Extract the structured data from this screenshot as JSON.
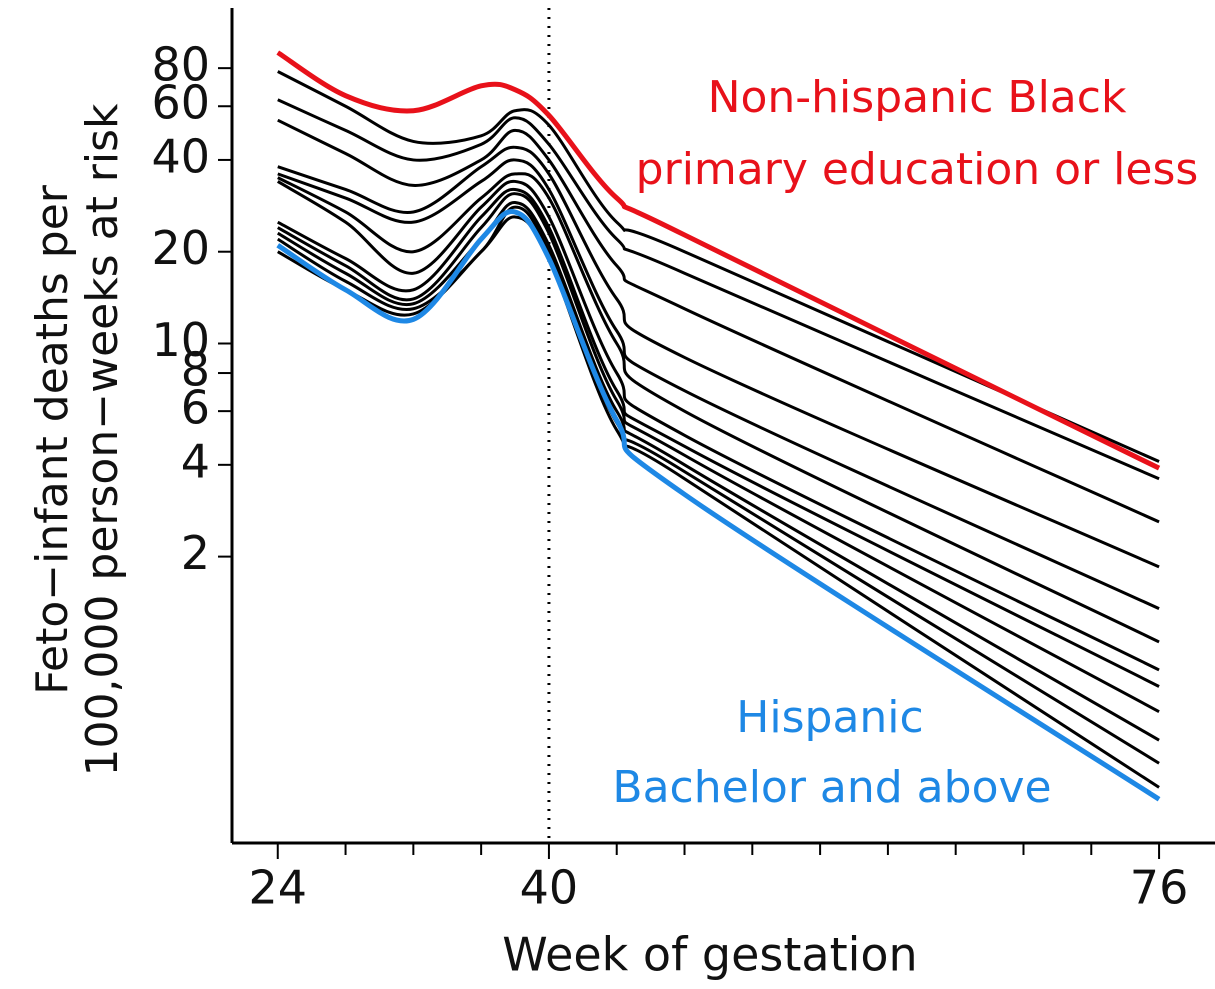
{
  "chart_data": {
    "type": "line",
    "xlabel": "Week of gestation",
    "ylabel": [
      "Feto−infant deaths per",
      "100,000 person−weeks at risk"
    ],
    "ylog": true,
    "xlim": [
      21.3,
      79.3
    ],
    "ylim": [
      0.23,
      126
    ],
    "xticks": [
      24,
      40,
      76
    ],
    "minor_xticks": [
      28,
      32,
      36,
      44,
      48,
      52,
      56,
      60,
      64,
      68,
      72
    ],
    "yticks": [
      2,
      4,
      6,
      8,
      10,
      20,
      40,
      60,
      80
    ],
    "vline": 40,
    "annotations": [
      {
        "lines": [
          "Non-hispanic Black",
          "primary education or less"
        ],
        "color": "#e8111a"
      },
      {
        "lines": [
          "Hispanic",
          "Bachelor and above"
        ],
        "color": "#1e88e5"
      }
    ],
    "x": [
      24,
      28,
      32,
      36,
      38,
      40,
      44,
      48,
      76
    ],
    "series": [
      {
        "color": "#000000",
        "values": [
          78,
          60,
          46,
          48,
          58,
          52,
          25,
          20,
          4.1
        ]
      },
      {
        "color": "#000000",
        "values": [
          63,
          50,
          40,
          45,
          55,
          45,
          22,
          17,
          3.6
        ]
      },
      {
        "color": "#000000",
        "values": [
          54,
          42,
          33,
          40,
          50,
          40,
          18,
          13,
          2.6
        ]
      },
      {
        "color": "#000000",
        "values": [
          38,
          32,
          27,
          38,
          44,
          36,
          14,
          9,
          1.85
        ]
      },
      {
        "color": "#000000",
        "values": [
          36,
          30,
          25,
          34,
          40,
          32,
          11,
          7,
          1.35
        ]
      },
      {
        "color": "#000000",
        "values": [
          35,
          27,
          20,
          30,
          36,
          30,
          10,
          6,
          1.05
        ]
      },
      {
        "color": "#000000",
        "values": [
          34,
          25,
          17,
          28,
          34,
          26,
          8,
          5,
          0.85
        ]
      },
      {
        "color": "#000000",
        "values": [
          25,
          19,
          15,
          26,
          32,
          24,
          7,
          4.6,
          0.75
        ]
      },
      {
        "color": "#000000",
        "values": [
          24,
          18,
          14,
          24,
          31,
          23,
          6.5,
          4.3,
          0.62
        ]
      },
      {
        "color": "#000000",
        "values": [
          23,
          17,
          13.5,
          22,
          29,
          21,
          6,
          4,
          0.5
        ]
      },
      {
        "color": "#000000",
        "values": [
          22,
          16,
          13,
          20,
          28,
          20,
          5.5,
          3.8,
          0.42
        ]
      },
      {
        "color": "#000000",
        "values": [
          20,
          15,
          12.5,
          20,
          26,
          19,
          5.2,
          3.6,
          0.35
        ]
      },
      {
        "color": "#e8111a",
        "values": [
          90,
          65,
          58,
          70,
          68,
          56,
          30,
          22.7,
          3.9
        ]
      },
      {
        "color": "#1e88e5",
        "values": [
          21,
          15,
          12,
          22,
          27,
          19,
          5.6,
          3.2,
          0.32
        ]
      }
    ]
  }
}
